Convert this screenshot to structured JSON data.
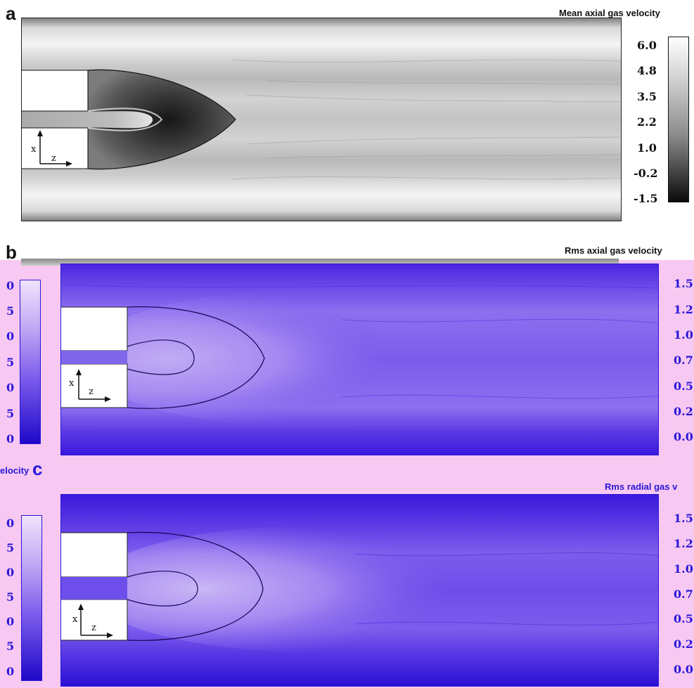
{
  "panels": [
    {
      "letter": "a",
      "title": "Mean axial gas velocity",
      "colorbar_ticks": [
        "6.0",
        "4.8",
        "3.5",
        "2.2",
        "1.0",
        "-0.2",
        "-1.5"
      ],
      "axis_x": "x",
      "axis_z": "z",
      "colormap": "grayscale"
    },
    {
      "letter": "b",
      "title": "Rms axial gas velocity",
      "colorbar_ticks_right": [
        "1.5",
        "1.2",
        "1.0",
        "0.7",
        "0.5",
        "0.2",
        "0.0"
      ],
      "colorbar_ticks_left": [
        "0",
        "5",
        "0",
        "5",
        "0",
        "5",
        "0"
      ],
      "axis_x": "x",
      "axis_z": "z",
      "colormap": "blue-purple"
    },
    {
      "letter": "c",
      "title": "Rms radial gas v",
      "title_left": "elocity",
      "colorbar_ticks_right": [
        "1.5",
        "1.2",
        "1.0",
        "0.7",
        "0.5",
        "0.2",
        "0.0"
      ],
      "colorbar_ticks_left": [
        "0",
        "5",
        "0",
        "5",
        "0",
        "5",
        "0"
      ],
      "axis_x": "x",
      "axis_z": "z",
      "colormap": "blue-purple"
    }
  ],
  "colors": {
    "pink_background": "#f7c8f2",
    "blue_dark": "#2a16d8",
    "blue_light": "#c9b5f5",
    "gray_light": "#ececec",
    "gray_dark": "#2a2a2a"
  }
}
